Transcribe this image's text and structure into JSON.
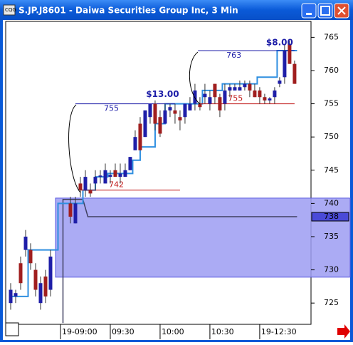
{
  "window": {
    "title": "S.JP.J8601 - Daiwa Securities Group Inc, 3 Min"
  },
  "chart_data": {
    "type": "candlestick",
    "up_color": "#1e1ea8",
    "down_color": "#a01e1e",
    "x": [
      0,
      1,
      2,
      3,
      4,
      5,
      6,
      7,
      8,
      12,
      13,
      14,
      15,
      16,
      17,
      18,
      19,
      20,
      21,
      22,
      23,
      24,
      25,
      26,
      27,
      28,
      29,
      30,
      31,
      32,
      33,
      34,
      35,
      36,
      37,
      38,
      39,
      40,
      41,
      42,
      43,
      44,
      45,
      46,
      47,
      48,
      49,
      50,
      51,
      52,
      53,
      54,
      55,
      56,
      57
    ],
    "open": [
      725,
      726,
      731,
      733,
      733,
      730,
      725,
      729,
      727,
      740,
      737,
      743,
      742,
      742,
      743,
      744,
      743,
      744,
      745,
      744,
      744,
      745,
      748,
      752,
      750,
      753,
      755,
      753,
      752,
      754,
      754,
      753,
      753,
      754,
      755,
      755,
      756,
      755,
      758,
      756,
      755,
      757,
      757,
      757,
      757.5,
      758,
      757,
      757,
      756,
      755.5,
      756,
      758,
      759,
      764,
      761
    ],
    "high": [
      728,
      727,
      732,
      736,
      734,
      731,
      729,
      730,
      733,
      741,
      741,
      744,
      745,
      743,
      745,
      745,
      746,
      745,
      746,
      746,
      746,
      747,
      751,
      753,
      754,
      755,
      755.5,
      754,
      755,
      755,
      755,
      754,
      755,
      756,
      758,
      756,
      758,
      757,
      758,
      756.5,
      758,
      758,
      758,
      758.5,
      758.5,
      758.5,
      758,
      757.5,
      756.5,
      756,
      757.5,
      759,
      764,
      764.5,
      761.5
    ],
    "low": [
      724,
      725,
      727,
      732,
      730,
      726,
      724,
      725,
      726,
      737,
      737,
      741,
      741,
      741,
      742,
      743,
      743,
      743,
      744,
      743,
      744,
      745,
      748,
      748,
      750,
      752,
      751,
      750,
      752,
      753,
      752,
      751,
      752,
      754,
      754,
      754,
      755,
      754,
      755,
      753,
      754,
      756,
      757,
      757,
      757,
      756,
      756,
      755,
      755,
      755,
      755,
      757.5,
      758,
      761,
      758
    ],
    "close": [
      727,
      726.5,
      728,
      735,
      731,
      727,
      728,
      726,
      732,
      738,
      740,
      742,
      744,
      741.5,
      744,
      744.2,
      745,
      744.3,
      744,
      744.5,
      745,
      747,
      750,
      748,
      754,
      755,
      752,
      750.5,
      754,
      754.5,
      753.5,
      752.5,
      755,
      755,
      757,
      754.5,
      756.5,
      756,
      756,
      754,
      757,
      757.5,
      757.5,
      757.5,
      758,
      757,
      756,
      756,
      755.5,
      755.8,
      757,
      758.5,
      763,
      761,
      758
    ],
    "step_line": {
      "color": "#2f8fe0",
      "x": [
        0,
        3.5,
        9.5,
        14.5,
        17,
        19.5,
        24.5,
        26,
        29,
        31,
        36,
        38.5,
        42.5,
        49.5,
        53.5,
        57.5
      ],
      "values": [
        726,
        733,
        740,
        742,
        744,
        744.5,
        746.5,
        748.5,
        752,
        755,
        755,
        757,
        758,
        759,
        763,
        763
      ]
    },
    "avg_line": {
      "color": "#404060",
      "x": [
        10.5,
        10.5,
        14.5,
        15.5,
        57.5
      ],
      "values": [
        722,
        740.6,
        740.6,
        738,
        738
      ]
    },
    "zone": {
      "color": "#9c9cf2",
      "border": "#5a5ae0",
      "values": [
        728.9,
        740.8
      ]
    },
    "levels": [
      {
        "value": 755,
        "x": [
          13,
          33
        ],
        "color": "#1e1ea8",
        "label": "755"
      },
      {
        "value": 742,
        "x": [
          14,
          34
        ],
        "color": "#c01818",
        "label": "742"
      },
      {
        "value": 763,
        "x": [
          37.6,
          57
        ],
        "color": "#1e1ea8",
        "label": "763"
      },
      {
        "value": 755,
        "x": [
          37.9,
          57
        ],
        "color": "#c01818",
        "label": "755"
      }
    ],
    "annotations": [
      {
        "text": "$13.00",
        "x": 30.5,
        "y": 756.4
      },
      {
        "text": "$8.00",
        "x": 54,
        "y": 764.2
      }
    ],
    "last_price": 738,
    "xlim": [
      -1,
      60.3
    ],
    "ylim": [
      721.8,
      767.4
    ],
    "yticks": [
      725,
      730,
      735,
      740,
      745,
      750,
      755,
      760,
      765
    ],
    "xticks": [
      {
        "value": 10,
        "label": "19-09:00"
      },
      {
        "value": 20,
        "label": "09:30"
      },
      {
        "value": 30,
        "label": "10:00"
      },
      {
        "value": 40,
        "label": "10:30"
      },
      {
        "value": 50,
        "label": "19-12:30"
      }
    ]
  }
}
